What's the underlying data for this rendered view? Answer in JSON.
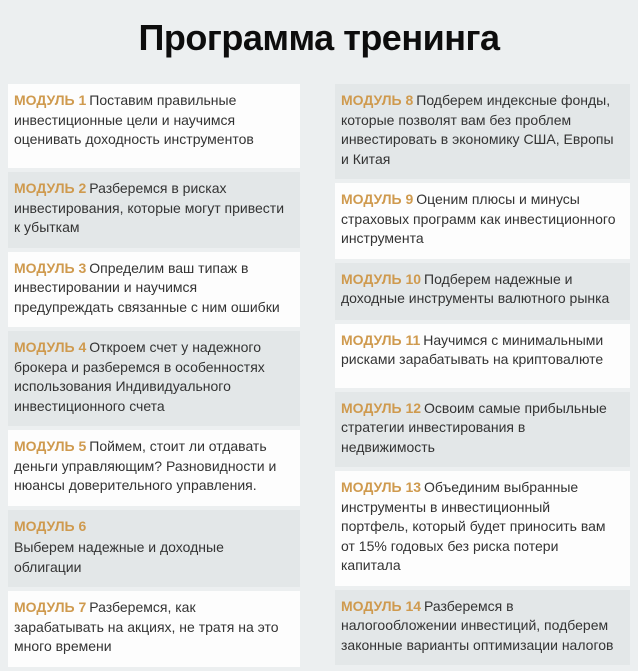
{
  "page": {
    "title": "Программа тренинга"
  },
  "colors": {
    "page_bg": "#eceff0",
    "card_white": "#fdfdfd",
    "card_grey": "#e3e7e8",
    "accent": "#cf9a4e",
    "text": "#333333",
    "title": "#0d0d0d"
  },
  "columns": {
    "left": [
      {
        "label": "МОДУЛЬ 1",
        "text": "Поставим правильные инвестиционные цели и научимся оценивать доходность инструментов",
        "variant": "white"
      },
      {
        "label": "МОДУЛЬ 2",
        "text": "Разберемся в рисках инвестирования, которые могут привести к убыткам",
        "variant": "grey"
      },
      {
        "label": "МОДУЛЬ 3",
        "text": "Определим ваш типаж в инвестировании и научимся предупреждать связанные с ним ошибки",
        "variant": "white"
      },
      {
        "label": "МОДУЛЬ 4",
        "text": "Откроем счет у надежного брокера и разберемся в особенностях использования Индивидуального инвестиционного счета",
        "variant": "grey"
      },
      {
        "label": "МОДУЛЬ 5",
        "text": "Поймем, стоит ли отдавать деньги управляющим? Разновидности и нюансы доверительного управления.",
        "variant": "white"
      },
      {
        "label": "МОДУЛЬ 6",
        "text": "Выберем надежные и доходные облигации",
        "variant": "grey",
        "break_after_label": true
      },
      {
        "label": "МОДУЛЬ 7",
        "text": "Разберемся, как зарабатывать на акциях, не тратя на это много времени",
        "variant": "white"
      }
    ],
    "right": [
      {
        "label": "МОДУЛЬ 8",
        "text": "Подберем индексные фонды, которые позволят вам без проблем инвестировать в экономику США, Европы и Китая",
        "variant": "grey"
      },
      {
        "label": "МОДУЛЬ 9",
        "text": "Оценим плюсы и минусы страховых программ как инвестиционного инструмента",
        "variant": "white"
      },
      {
        "label": "МОДУЛЬ 10",
        "text": "Подберем надежные и доходные инструменты валютного рынка",
        "variant": "grey"
      },
      {
        "label": "МОДУЛЬ 11",
        "text": "Научимся с минимальными рисками зарабатывать на криптовалюте",
        "variant": "white"
      },
      {
        "label": "МОДУЛЬ 12",
        "text": "Освоим самые прибыльные стратегии инвестирования в недвижимость",
        "variant": "grey"
      },
      {
        "label": "МОДУЛЬ 13",
        "text": "Объединим выбранные инструменты в инвестиционный портфель, который будет приносить вам от 15% годовых без риска потери капитала",
        "variant": "white"
      },
      {
        "label": "МОДУЛЬ 14",
        "text": "Разберемся в налогообложении инвестиций, подберем законные варианты оптимизации налогов",
        "variant": "grey"
      }
    ]
  }
}
